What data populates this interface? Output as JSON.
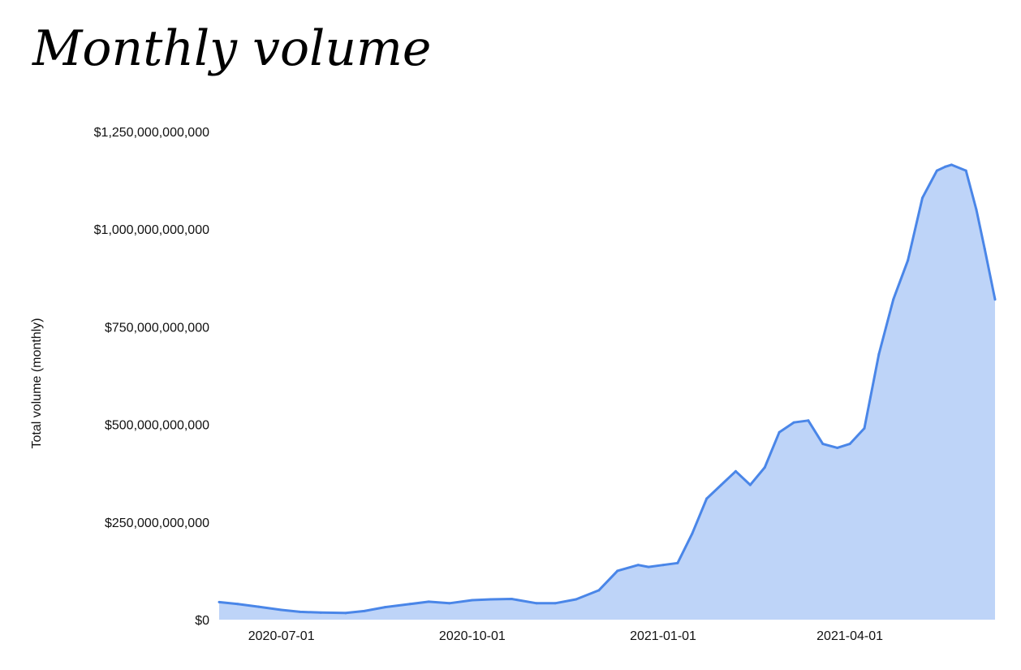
{
  "chart_data": {
    "type": "area",
    "title": "Monthly volume",
    "xlabel": "",
    "ylabel": "Total volume (monthly)",
    "x_range": [
      "2020-06-01",
      "2021-06-10"
    ],
    "ylim": [
      0,
      1250000000000
    ],
    "y_ticks": [
      {
        "value": 0,
        "label": "$0"
      },
      {
        "value": 250000000000,
        "label": "$250,000,000,000"
      },
      {
        "value": 500000000000,
        "label": "$500,000,000,000"
      },
      {
        "value": 750000000000,
        "label": "$750,000,000,000"
      },
      {
        "value": 1000000000000,
        "label": "$1,000,000,000,000"
      },
      {
        "value": 1250000000000,
        "label": "$1,250,000,000,000"
      }
    ],
    "x_ticks": [
      {
        "value": "2020-07-01",
        "label": "2020-07-01"
      },
      {
        "value": "2020-10-01",
        "label": "2020-10-01"
      },
      {
        "value": "2021-01-01",
        "label": "2021-01-01"
      },
      {
        "value": "2021-04-01",
        "label": "2021-04-01"
      }
    ],
    "grid": false,
    "colors": {
      "line": "#4a86e8",
      "fill": "#bed4f8"
    },
    "series": [
      {
        "x": [
          "2020-06-01",
          "2020-06-10",
          "2020-06-20",
          "2020-07-01",
          "2020-07-10",
          "2020-07-20",
          "2020-08-01",
          "2020-08-10",
          "2020-08-20",
          "2020-09-01",
          "2020-09-10",
          "2020-09-20",
          "2020-10-01",
          "2020-10-10",
          "2020-10-20",
          "2020-11-01",
          "2020-11-10",
          "2020-11-20",
          "2020-12-01",
          "2020-12-10",
          "2020-12-20",
          "2020-12-25",
          "2021-01-01",
          "2021-01-08",
          "2021-01-15",
          "2021-01-22",
          "2021-01-29",
          "2021-02-05",
          "2021-02-12",
          "2021-02-19",
          "2021-02-26",
          "2021-03-05",
          "2021-03-12",
          "2021-03-19",
          "2021-03-26",
          "2021-04-01",
          "2021-04-08",
          "2021-04-15",
          "2021-04-22",
          "2021-04-29",
          "2021-05-06",
          "2021-05-13",
          "2021-05-17",
          "2021-05-20",
          "2021-05-27",
          "2021-06-01",
          "2021-06-05",
          "2021-06-10"
        ],
        "y": [
          45000000000,
          40000000000,
          33000000000,
          25000000000,
          20000000000,
          18000000000,
          17000000000,
          22000000000,
          32000000000,
          40000000000,
          46000000000,
          42000000000,
          50000000000,
          52000000000,
          53000000000,
          42000000000,
          42000000000,
          52000000000,
          75000000000,
          125000000000,
          140000000000,
          135000000000,
          140000000000,
          145000000000,
          220000000000,
          310000000000,
          345000000000,
          380000000000,
          345000000000,
          390000000000,
          480000000000,
          505000000000,
          510000000000,
          450000000000,
          440000000000,
          450000000000,
          490000000000,
          680000000000,
          820000000000,
          920000000000,
          1080000000000,
          1150000000000,
          1160000000000,
          1165000000000,
          1150000000000,
          1050000000000,
          950000000000,
          820000000000
        ]
      }
    ]
  }
}
